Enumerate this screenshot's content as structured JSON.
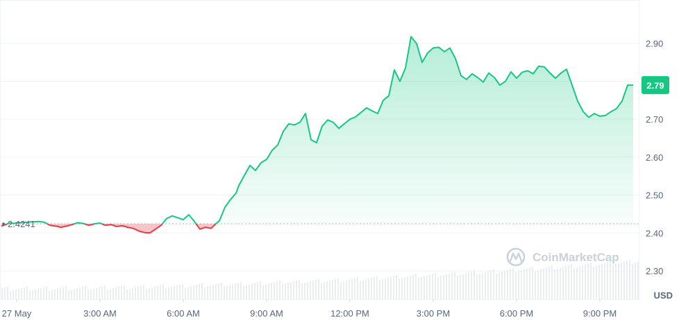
{
  "chart_data": {
    "type": "area",
    "currency": "USD",
    "baseline_value": "2.4241",
    "current_value_label": "2.79",
    "watermark": "CoinMarketCap",
    "x_ticks": [
      "27 May",
      "3:00 AM",
      "6:00 AM",
      "9:00 AM",
      "12:00 PM",
      "3:00 PM",
      "6:00 PM",
      "9:00 PM"
    ],
    "x_tick_hours": [
      0,
      3,
      6,
      9,
      12,
      15,
      18,
      21
    ],
    "xlim": [
      -0.6,
      22.4
    ],
    "y_ticks": [
      "2.90",
      "2.80",
      "2.70",
      "2.60",
      "2.50",
      "2.40",
      "2.30"
    ],
    "ylim": [
      2.225,
      3.0
    ],
    "grid": true,
    "colors": {
      "up": "#16c784",
      "down": "#ea3943",
      "badge": "#16c784",
      "text": "#58667e",
      "grid": "#eff2f5"
    },
    "series": [
      {
        "x": [
          -0.55,
          -0.4,
          -0.25,
          -0.1,
          0.0,
          0.2,
          0.5,
          0.8,
          1.0,
          1.2,
          1.4,
          1.6,
          1.8,
          2.0,
          2.2,
          2.4,
          2.6,
          2.8,
          3.0,
          3.2,
          3.4,
          3.6,
          3.8,
          4.0,
          4.2,
          4.4,
          4.6,
          4.8,
          5.0,
          5.2,
          5.4,
          5.6,
          5.8,
          6.0,
          6.2,
          6.4,
          6.6,
          6.8,
          7.0,
          7.2,
          7.3,
          7.5,
          7.7,
          7.9,
          8.0,
          8.2,
          8.4,
          8.6,
          8.8,
          9.0,
          9.2,
          9.4,
          9.6,
          9.8,
          10.0,
          10.2,
          10.4,
          10.6,
          10.8,
          11.0,
          11.2,
          11.4,
          11.6,
          11.8,
          12.0,
          12.2,
          12.4,
          12.6,
          12.8,
          13.0,
          13.2,
          13.4,
          13.6,
          13.8,
          14.0,
          14.2,
          14.4,
          14.6,
          14.8,
          15.0,
          15.2,
          15.4,
          15.6,
          15.8,
          16.0,
          16.2,
          16.4,
          16.6,
          16.8,
          17.0,
          17.2,
          17.4,
          17.6,
          17.8,
          18.0,
          18.2,
          18.4,
          18.6,
          18.8,
          19.0,
          19.2,
          19.4,
          19.6,
          19.8,
          20.0,
          20.2,
          20.4,
          20.6,
          20.8,
          21.0,
          21.2,
          21.4,
          21.6,
          21.8,
          22.0,
          22.2
        ],
        "y": [
          2.418,
          2.422,
          2.426,
          2.425,
          2.427,
          2.427,
          2.429,
          2.43,
          2.428,
          2.42,
          2.418,
          2.415,
          2.418,
          2.422,
          2.427,
          2.425,
          2.42,
          2.424,
          2.426,
          2.42,
          2.422,
          2.417,
          2.419,
          2.415,
          2.412,
          2.405,
          2.401,
          2.4,
          2.41,
          2.42,
          2.438,
          2.445,
          2.44,
          2.435,
          2.448,
          2.43,
          2.41,
          2.415,
          2.412,
          2.426,
          2.432,
          2.468,
          2.488,
          2.505,
          2.525,
          2.552,
          2.578,
          2.565,
          2.585,
          2.594,
          2.618,
          2.632,
          2.668,
          2.688,
          2.685,
          2.692,
          2.715,
          2.646,
          2.638,
          2.682,
          2.698,
          2.692,
          2.676,
          2.688,
          2.7,
          2.706,
          2.718,
          2.73,
          2.722,
          2.715,
          2.75,
          2.762,
          2.83,
          2.8,
          2.835,
          2.918,
          2.9,
          2.85,
          2.875,
          2.888,
          2.89,
          2.878,
          2.888,
          2.86,
          2.815,
          2.805,
          2.82,
          2.81,
          2.798,
          2.822,
          2.81,
          2.79,
          2.8,
          2.825,
          2.808,
          2.824,
          2.828,
          2.82,
          2.84,
          2.838,
          2.822,
          2.808,
          2.822,
          2.832,
          2.79,
          2.748,
          2.72,
          2.705,
          2.715,
          2.708,
          2.71,
          2.72,
          2.728,
          2.748,
          2.79,
          2.79
        ]
      }
    ]
  }
}
